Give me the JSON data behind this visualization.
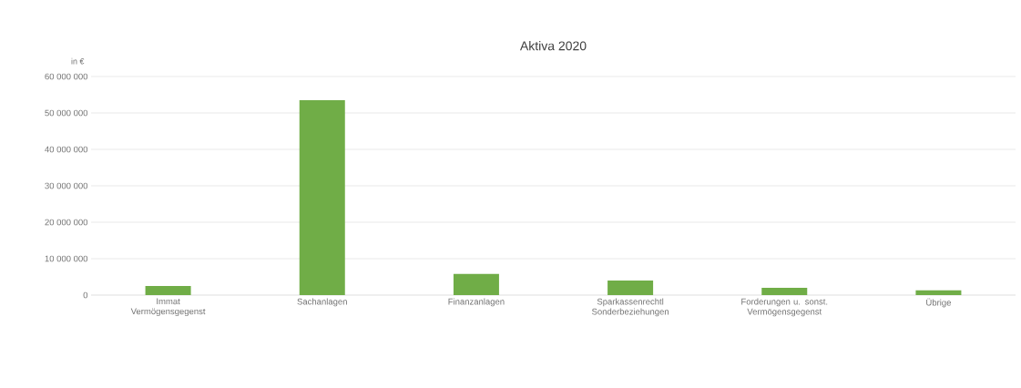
{
  "chart_data": {
    "type": "bar",
    "title": "Aktiva 2020",
    "ylabel": "in €",
    "categories": [
      "Immat Vermögensgegenst",
      "Sachanlagen",
      "Finanzanlagen",
      "Sparkassenrechtl Sonderbeziehungen",
      "Forderungen u. sonst. Vermögensgegenst",
      "Übrige"
    ],
    "values": [
      2500000,
      53500000,
      5800000,
      4000000,
      2000000,
      1300000
    ],
    "color": "#70ad47",
    "ylim": [
      0,
      60000000
    ],
    "yticks": [
      {
        "value": 0,
        "label": "0"
      },
      {
        "value": 10000000,
        "label": "10 000 000"
      },
      {
        "value": 20000000,
        "label": "20 000 000"
      },
      {
        "value": 30000000,
        "label": "30 000 000"
      },
      {
        "value": 40000000,
        "label": "40 000 000"
      },
      {
        "value": 50000000,
        "label": "50 000 000"
      },
      {
        "value": 60000000,
        "label": "60 000 000"
      }
    ],
    "grid": "y"
  }
}
